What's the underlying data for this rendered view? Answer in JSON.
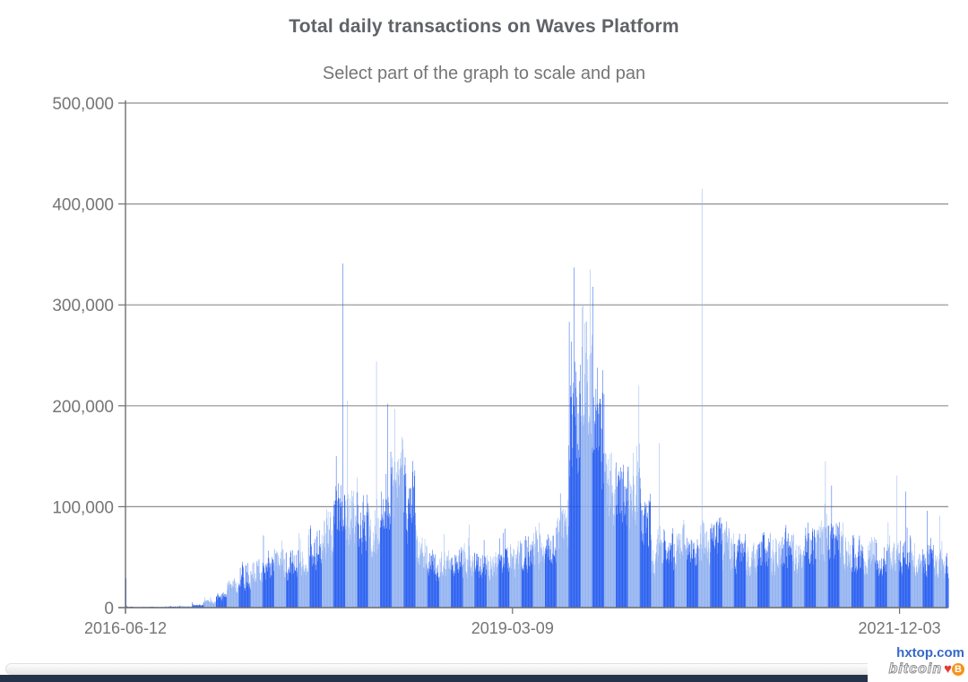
{
  "header": {
    "title": "Total daily transactions on Waves Platform",
    "subtitle": "Select part of the graph to scale and pan"
  },
  "watermark": {
    "site": "hxtop.com",
    "brand": "bitcoin",
    "heart": "♥",
    "coin": "B"
  },
  "chart_data": {
    "type": "bar",
    "title": "Total daily transactions on Waves Platform",
    "subtitle": "Select part of the graph to scale and pan",
    "xlabel": "",
    "ylabel": "",
    "grid": true,
    "legend": "none",
    "ylim": [
      0,
      500000
    ],
    "x_range": [
      "2016-06-12",
      "2022-04-08"
    ],
    "y_ticks": [
      {
        "value": 0,
        "label": "0"
      },
      {
        "value": 100000,
        "label": "100,000"
      },
      {
        "value": 200000,
        "label": "200,000"
      },
      {
        "value": 300000,
        "label": "300,000"
      },
      {
        "value": 400000,
        "label": "400,000"
      },
      {
        "value": 500000,
        "label": "500,000"
      }
    ],
    "x_ticks": [
      {
        "date": "2016-06-12",
        "label": "2016-06-12"
      },
      {
        "date": "2019-03-09",
        "label": "2019-03-09"
      },
      {
        "date": "2021-12-03",
        "label": "2021-12-03"
      }
    ],
    "colors": {
      "bar_dark": "#2159ef",
      "bar_light": "#8fb0f0",
      "axis": "#6f6f6f",
      "grid": "#8f8f8f",
      "text": "#757575",
      "title": "#5f6368"
    },
    "month_color_rule": "daily bars alternate dark/light blue by calendar month",
    "monthly_envelope": [
      {
        "m": "2016-06",
        "t": 800,
        "p": 29000
      },
      {
        "m": "2016-07",
        "t": 600,
        "p": 2000
      },
      {
        "m": "2016-08",
        "t": 600,
        "p": 2000
      },
      {
        "m": "2016-09",
        "t": 700,
        "p": 2500
      },
      {
        "m": "2016-10",
        "t": 900,
        "p": 3000
      },
      {
        "m": "2016-11",
        "t": 1300,
        "p": 4500
      },
      {
        "m": "2016-12",
        "t": 2500,
        "p": 8000
      },
      {
        "m": "2017-01",
        "t": 6000,
        "p": 15000
      },
      {
        "m": "2017-02",
        "t": 11000,
        "p": 22000
      },
      {
        "m": "2017-03",
        "t": 22000,
        "p": 42000
      },
      {
        "m": "2017-04",
        "t": 30000,
        "p": 55000
      },
      {
        "m": "2017-05",
        "t": 35000,
        "p": 62000
      },
      {
        "m": "2017-06",
        "t": 45000,
        "p": 95000
      },
      {
        "m": "2017-07",
        "t": 48000,
        "p": 80000
      },
      {
        "m": "2017-08",
        "t": 44000,
        "p": 72000
      },
      {
        "m": "2017-09",
        "t": 50000,
        "p": 95000
      },
      {
        "m": "2017-10",
        "t": 58000,
        "p": 100000
      },
      {
        "m": "2017-11",
        "t": 70000,
        "p": 130000
      },
      {
        "m": "2017-12",
        "t": 95000,
        "p": 190000
      },
      {
        "m": "2018-01",
        "t": 105000,
        "p": 160000
      },
      {
        "m": "2018-02",
        "t": 88000,
        "p": 130000
      },
      {
        "m": "2018-03",
        "t": 80000,
        "p": 125000
      },
      {
        "m": "2018-04",
        "t": 115000,
        "p": 200000
      },
      {
        "m": "2018-05",
        "t": 135000,
        "p": 198000
      },
      {
        "m": "2018-06",
        "t": 110000,
        "p": 160000
      },
      {
        "m": "2018-07",
        "t": 60000,
        "p": 110000
      },
      {
        "m": "2018-08",
        "t": 45000,
        "p": 68000
      },
      {
        "m": "2018-09",
        "t": 47000,
        "p": 108000
      },
      {
        "m": "2018-10",
        "t": 45000,
        "p": 65000
      },
      {
        "m": "2018-11",
        "t": 50000,
        "p": 105000
      },
      {
        "m": "2018-12",
        "t": 45000,
        "p": 90000
      },
      {
        "m": "2019-01",
        "t": 42000,
        "p": 62000
      },
      {
        "m": "2019-02",
        "t": 46000,
        "p": 108000
      },
      {
        "m": "2019-03",
        "t": 50000,
        "p": 80000
      },
      {
        "m": "2019-04",
        "t": 55000,
        "p": 85000
      },
      {
        "m": "2019-05",
        "t": 58000,
        "p": 118000
      },
      {
        "m": "2019-06",
        "t": 62000,
        "p": 100000
      },
      {
        "m": "2019-07",
        "t": 95000,
        "p": 230000
      },
      {
        "m": "2019-08",
        "t": 200000,
        "p": 300000
      },
      {
        "m": "2019-09",
        "t": 225000,
        "p": 320000
      },
      {
        "m": "2019-10",
        "t": 175000,
        "p": 280000
      },
      {
        "m": "2019-11",
        "t": 125000,
        "p": 185000
      },
      {
        "m": "2019-12",
        "t": 115000,
        "p": 165000
      },
      {
        "m": "2020-01",
        "t": 120000,
        "p": 200000
      },
      {
        "m": "2020-02",
        "t": 85000,
        "p": 140000
      },
      {
        "m": "2020-03",
        "t": 55000,
        "p": 120000
      },
      {
        "m": "2020-04",
        "t": 60000,
        "p": 100000
      },
      {
        "m": "2020-05",
        "t": 65000,
        "p": 95000
      },
      {
        "m": "2020-06",
        "t": 60000,
        "p": 90000
      },
      {
        "m": "2020-07",
        "t": 70000,
        "p": 105000
      },
      {
        "m": "2020-08",
        "t": 70000,
        "p": 100000
      },
      {
        "m": "2020-09",
        "t": 62000,
        "p": 92000
      },
      {
        "m": "2020-10",
        "t": 55000,
        "p": 85000
      },
      {
        "m": "2020-11",
        "t": 52000,
        "p": 80000
      },
      {
        "m": "2020-12",
        "t": 56000,
        "p": 90000
      },
      {
        "m": "2021-01",
        "t": 55000,
        "p": 90000
      },
      {
        "m": "2021-02",
        "t": 60000,
        "p": 100000
      },
      {
        "m": "2021-03",
        "t": 55000,
        "p": 90000
      },
      {
        "m": "2021-04",
        "t": 60000,
        "p": 95000
      },
      {
        "m": "2021-05",
        "t": 65000,
        "p": 125000
      },
      {
        "m": "2021-06",
        "t": 68000,
        "p": 115000
      },
      {
        "m": "2021-07",
        "t": 60000,
        "p": 95000
      },
      {
        "m": "2021-08",
        "t": 55000,
        "p": 90000
      },
      {
        "m": "2021-09",
        "t": 52000,
        "p": 85000
      },
      {
        "m": "2021-10",
        "t": 50000,
        "p": 80000
      },
      {
        "m": "2021-11",
        "t": 56000,
        "p": 110000
      },
      {
        "m": "2021-12",
        "t": 55000,
        "p": 100000
      },
      {
        "m": "2022-01",
        "t": 46000,
        "p": 75000
      },
      {
        "m": "2022-02",
        "t": 50000,
        "p": 90000
      },
      {
        "m": "2022-03",
        "t": 46000,
        "p": 88000
      },
      {
        "m": "2022-04",
        "t": 45000,
        "p": 85000
      }
    ],
    "spikes": [
      {
        "date": "2016-06-13",
        "value": 29000
      },
      {
        "date": "2017-12-25",
        "value": 341000
      },
      {
        "date": "2018-01-06",
        "value": 205000
      },
      {
        "date": "2018-03-22",
        "value": 244000
      },
      {
        "date": "2018-04-20",
        "value": 202000
      },
      {
        "date": "2018-05-08",
        "value": 197000
      },
      {
        "date": "2019-08-02",
        "value": 283000
      },
      {
        "date": "2019-08-14",
        "value": 337000
      },
      {
        "date": "2019-09-25",
        "value": 335000
      },
      {
        "date": "2019-10-02",
        "value": 318000
      },
      {
        "date": "2020-01-29",
        "value": 220000
      },
      {
        "date": "2020-03-22",
        "value": 163000
      },
      {
        "date": "2020-07-10",
        "value": 415000
      },
      {
        "date": "2021-05-25",
        "value": 145000
      },
      {
        "date": "2021-06-10",
        "value": 121000
      },
      {
        "date": "2021-11-26",
        "value": 131000
      },
      {
        "date": "2021-12-19",
        "value": 115000
      },
      {
        "date": "2022-02-12",
        "value": 96000
      },
      {
        "date": "2022-03-16",
        "value": 91000
      }
    ]
  }
}
